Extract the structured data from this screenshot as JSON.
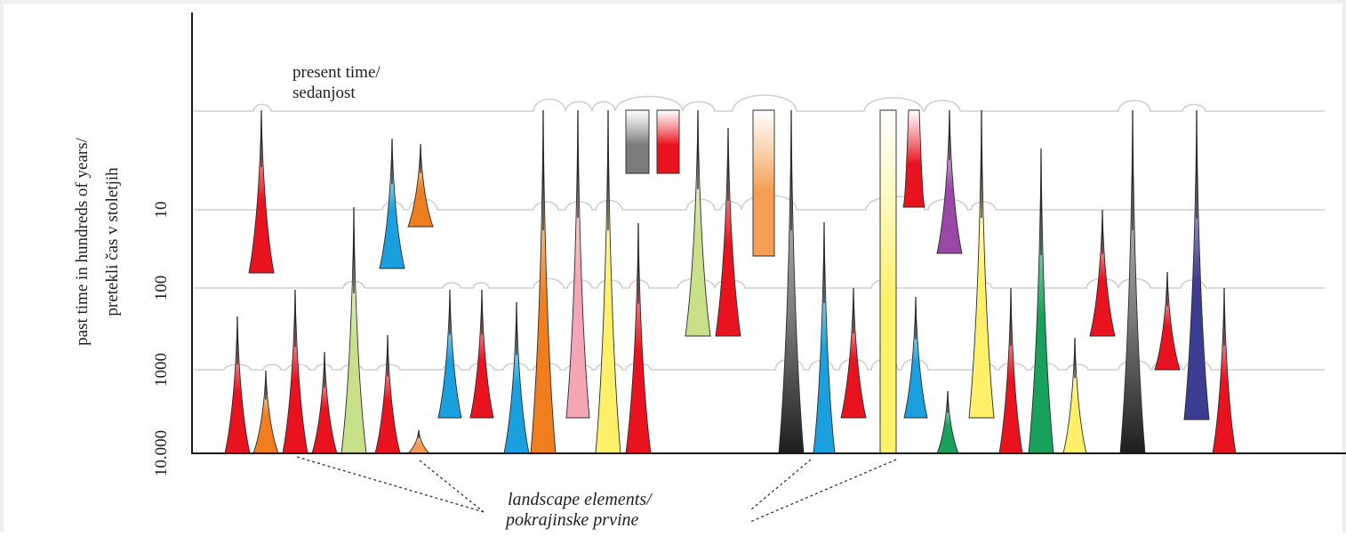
{
  "diagram": {
    "present_label": {
      "line1": "present time/",
      "line2": "sedanjost"
    },
    "axis_title": {
      "line1": "past time in hundreds of years/",
      "line2": "pretekli čas v stoletjih"
    },
    "ticks": [
      "10",
      "100",
      "1000",
      "10.000"
    ],
    "bottom_label": {
      "line1": "landscape elements/",
      "line2": "pokrajinske prvine"
    },
    "colors": {
      "red": "#e8131f",
      "orange": "#f07d1e",
      "blue": "#1aa0de",
      "light_green": "#c8e08a",
      "pink": "#f4a6b4",
      "yellow": "#fff06a",
      "gray": "#7b7b7b",
      "purple": "#9b47a8",
      "green": "#17a15a",
      "navy": "#3c3d92",
      "peach": "#f59e53"
    }
  }
}
